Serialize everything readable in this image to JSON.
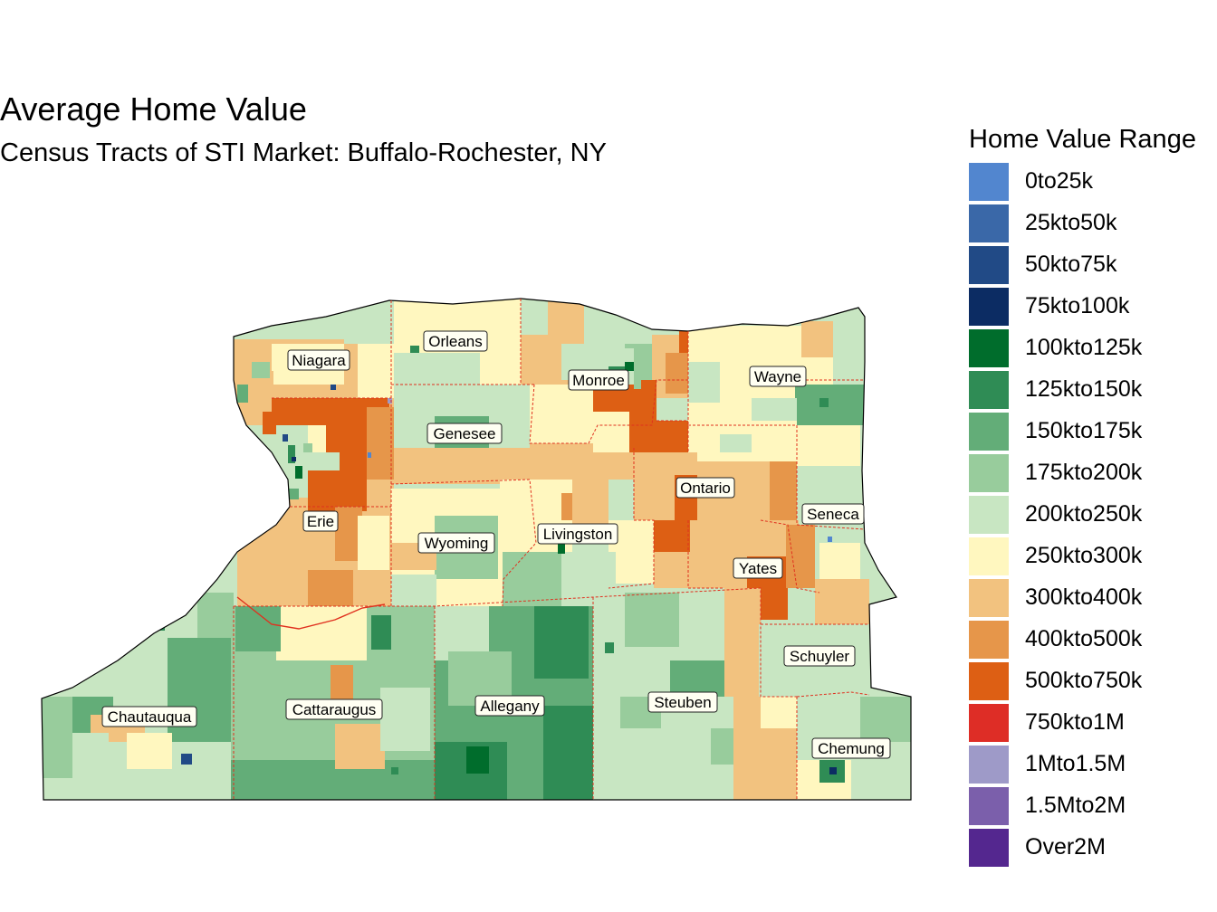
{
  "title": "Average Home Value",
  "subtitle": "Census Tracts of STI Market: Buffalo-Rochester, NY",
  "legend": {
    "title": "Home Value Range",
    "items": [
      {
        "label": "0to25k",
        "color": "#5286cf"
      },
      {
        "label": "25kto50k",
        "color": "#3a68a8"
      },
      {
        "label": "50kto75k",
        "color": "#214a86"
      },
      {
        "label": "75kto100k",
        "color": "#0c2c63"
      },
      {
        "label": "100kto125k",
        "color": "#006d2c"
      },
      {
        "label": "125kto150k",
        "color": "#2f8c55"
      },
      {
        "label": "150kto175k",
        "color": "#63ad78"
      },
      {
        "label": "175kto200k",
        "color": "#98cc9c"
      },
      {
        "label": "200kto250k",
        "color": "#c8e6c2"
      },
      {
        "label": "250kto300k",
        "color": "#fff7bf"
      },
      {
        "label": "300kto400k",
        "color": "#f2c27f"
      },
      {
        "label": "400kto500k",
        "color": "#e6964a"
      },
      {
        "label": "500kto750k",
        "color": "#dd5f14"
      },
      {
        "label": "750kto1M",
        "color": "#de2d26"
      },
      {
        "label": "1Mto1.5M",
        "color": "#9e9ac8"
      },
      {
        "label": "1.5Mto2M",
        "color": "#7b5fab"
      },
      {
        "label": "Over2M",
        "color": "#54278f"
      }
    ]
  },
  "counties": [
    {
      "name": "Niagara"
    },
    {
      "name": "Orleans"
    },
    {
      "name": "Monroe"
    },
    {
      "name": "Wayne"
    },
    {
      "name": "Genesee"
    },
    {
      "name": "Ontario"
    },
    {
      "name": "Erie"
    },
    {
      "name": "Seneca"
    },
    {
      "name": "Livingston"
    },
    {
      "name": "Wyoming"
    },
    {
      "name": "Yates"
    },
    {
      "name": "Schuyler"
    },
    {
      "name": "Chautauqua"
    },
    {
      "name": "Cattaraugus"
    },
    {
      "name": "Allegany"
    },
    {
      "name": "Steuben"
    },
    {
      "name": "Chemung"
    }
  ]
}
